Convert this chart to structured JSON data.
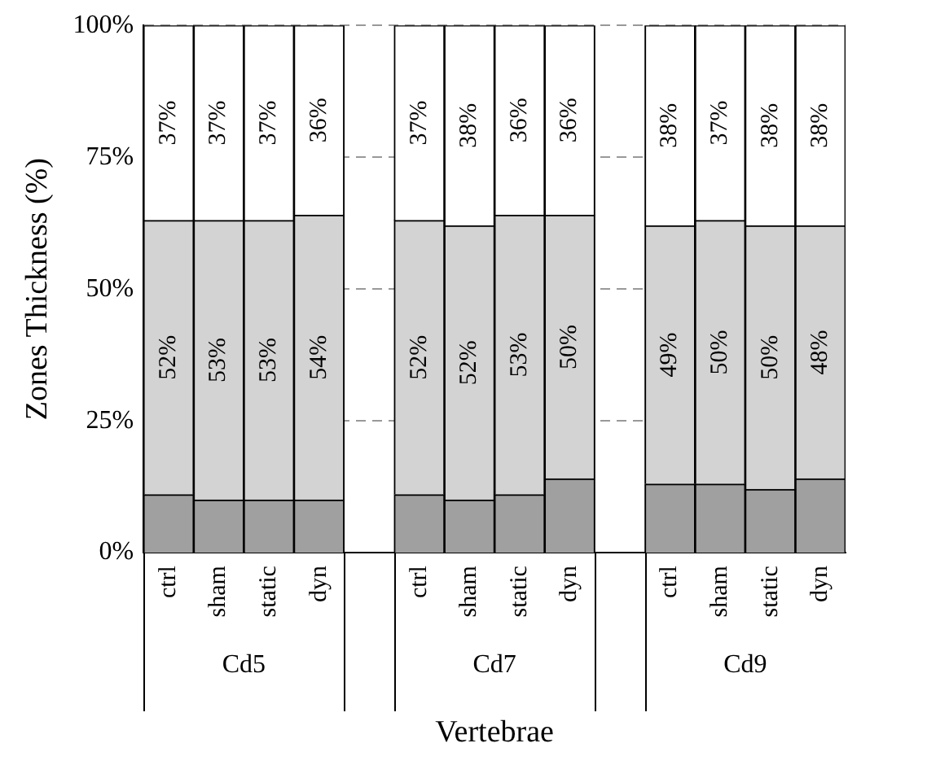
{
  "chart_data": {
    "type": "bar",
    "stacked": true,
    "xlabel": "Vertebrae",
    "ylabel": "Zones Thickness (%)",
    "categories": [
      "ctrl",
      "sham",
      "static",
      "dyn",
      null,
      "ctrl",
      "sham",
      "static",
      "dyn",
      null,
      "ctrl",
      "sham",
      "static",
      "dyn"
    ],
    "series": [
      {
        "color": "#a0a0a0",
        "values": [
          11,
          10,
          10,
          10,
          null,
          11,
          10,
          11,
          14,
          null,
          13,
          13,
          12,
          14
        ]
      },
      {
        "color": "#d3d3d3",
        "values": [
          52,
          53,
          53,
          54,
          null,
          52,
          52,
          53,
          50,
          null,
          49,
          50,
          50,
          48
        ],
        "value_labels": [
          "52%",
          "53%",
          "53%",
          "54%",
          null,
          "52%",
          "52%",
          "53%",
          "50%",
          null,
          "49%",
          "50%",
          "50%",
          "48%"
        ]
      },
      {
        "color": "#ffffff",
        "values": [
          37,
          37,
          37,
          36,
          null,
          37,
          38,
          36,
          36,
          null,
          38,
          37,
          38,
          38
        ],
        "value_labels": [
          "37%",
          "37%",
          "37%",
          "36%",
          null,
          "37%",
          "38%",
          "36%",
          "36%",
          null,
          "38%",
          "37%",
          "38%",
          "38%"
        ]
      }
    ],
    "ylim": [
      0,
      100
    ],
    "yticks": [
      {
        "value": 0,
        "label": "0%"
      },
      {
        "value": 25,
        "label": "25%"
      },
      {
        "value": 50,
        "label": "50%"
      },
      {
        "value": 75,
        "label": "75%"
      },
      {
        "value": 100,
        "label": "100%"
      }
    ],
    "grid": "y",
    "legend": false,
    "annotations": [
      "Cd5",
      "Cd7",
      "Cd9"
    ]
  }
}
